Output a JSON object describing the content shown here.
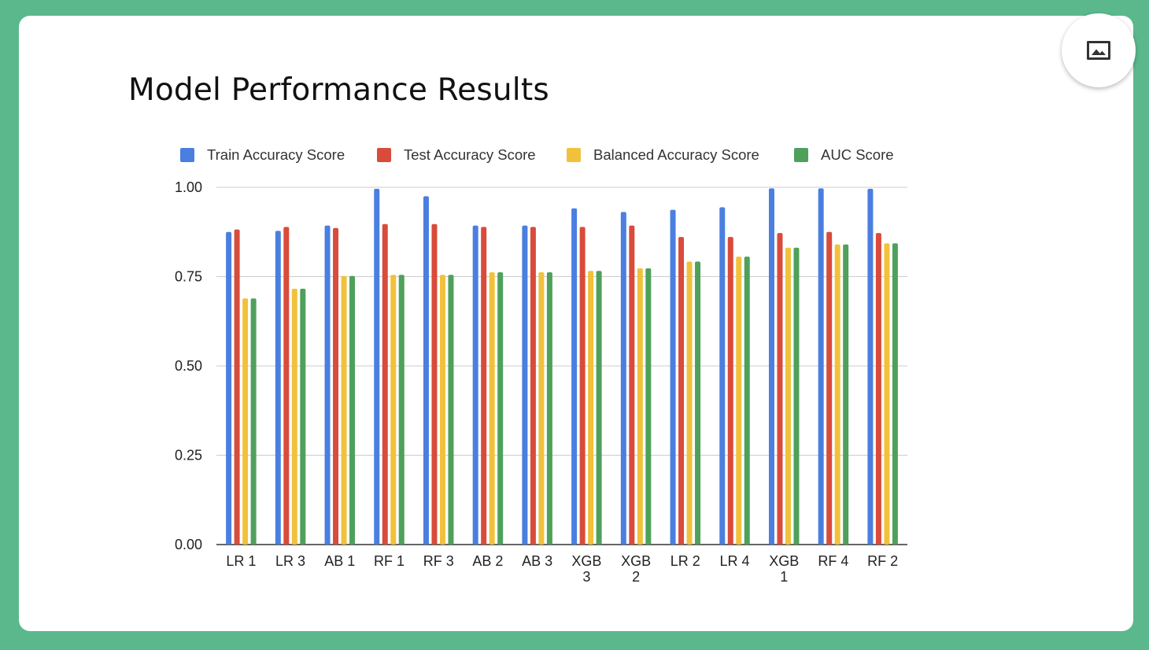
{
  "slide": {
    "title": "Model Performance Results",
    "image_button_icon": "image-icon"
  },
  "colors": {
    "background": "#5bb88d",
    "card": "#ffffff",
    "gridline": "#cccccc",
    "axis": "#333333"
  },
  "chart_data": {
    "type": "bar",
    "title": "Model Performance Results",
    "xlabel": "",
    "ylabel": "",
    "ylim": [
      0,
      1
    ],
    "yticks": [
      "0.00",
      "0.25",
      "0.50",
      "0.75",
      "1.00"
    ],
    "ytick_values": [
      0,
      0.25,
      0.5,
      0.75,
      1.0
    ],
    "grid": true,
    "legend_position": "top",
    "categories": [
      "LR 1",
      "LR 3",
      "AB 1",
      "RF 1",
      "RF 3",
      "AB 2",
      "AB 3",
      "XGB 3",
      "XGB 2",
      "LR 2",
      "LR 4",
      "XGB 1",
      "RF 4",
      "RF 2"
    ],
    "series": [
      {
        "name": "Train Accuracy Score",
        "color": "#4a7fe0",
        "values": [
          0.875,
          0.878,
          0.893,
          0.996,
          0.975,
          0.893,
          0.893,
          0.941,
          0.931,
          0.937,
          0.944,
          0.997,
          0.997,
          0.996
        ]
      },
      {
        "name": "Test Accuracy Score",
        "color": "#d94b3b",
        "values": [
          0.882,
          0.889,
          0.886,
          0.897,
          0.897,
          0.889,
          0.889,
          0.889,
          0.893,
          0.861,
          0.861,
          0.872,
          0.875,
          0.872
        ]
      },
      {
        "name": "Balanced Accuracy Score",
        "color": "#f2c13c",
        "values": [
          0.689,
          0.716,
          0.752,
          0.755,
          0.755,
          0.762,
          0.762,
          0.766,
          0.773,
          0.792,
          0.806,
          0.831,
          0.84,
          0.843
        ]
      },
      {
        "name": "AUC Score",
        "color": "#4fa05b",
        "values": [
          0.689,
          0.716,
          0.752,
          0.755,
          0.755,
          0.762,
          0.762,
          0.766,
          0.773,
          0.792,
          0.806,
          0.831,
          0.84,
          0.843
        ]
      }
    ]
  }
}
